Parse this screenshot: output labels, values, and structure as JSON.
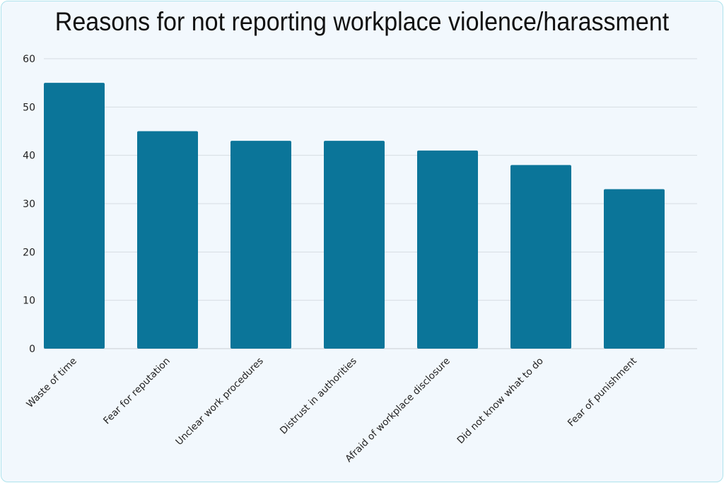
{
  "chart_data": {
    "type": "bar",
    "title": "Reasons for not reporting workplace violence/harassment",
    "categories": [
      "Waste of time",
      "Fear for reputation",
      "Unclear work procedures",
      "Distrust in authorities",
      "Afraid of workplace disclosure",
      "Did not know what to do",
      "Fear of punishment"
    ],
    "values": [
      55,
      45,
      43,
      43,
      41,
      38,
      33
    ],
    "xlabel": "",
    "ylabel": "",
    "ylim": [
      0,
      60
    ],
    "yticks": [
      0,
      10,
      20,
      30,
      40,
      50,
      60
    ],
    "grid": true,
    "bar_color": "#0b7599"
  }
}
